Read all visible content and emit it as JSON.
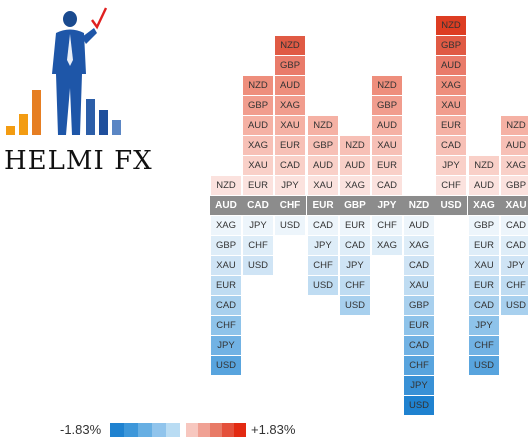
{
  "brand": {
    "name": "HELMI FX"
  },
  "logo": {
    "icon": "businessman-chart-logo"
  },
  "heatmap": {
    "columns": [
      {
        "base": "AUD",
        "up": [
          "NZD"
        ],
        "down": [
          "XAG",
          "GBP",
          "XAU",
          "EUR",
          "CAD",
          "CHF",
          "JPY",
          "USD"
        ]
      },
      {
        "base": "CAD",
        "up": [
          "EUR",
          "XAU",
          "XAG",
          "AUD",
          "GBP",
          "NZD"
        ],
        "down": [
          "JPY",
          "CHF",
          "USD"
        ]
      },
      {
        "base": "CHF",
        "up": [
          "JPY",
          "CAD",
          "EUR",
          "XAU",
          "XAG",
          "AUD",
          "GBP",
          "NZD"
        ],
        "down": [
          "USD"
        ]
      },
      {
        "base": "EUR",
        "up": [
          "XAU",
          "AUD",
          "GBP",
          "NZD"
        ],
        "down": [
          "CAD",
          "JPY",
          "CHF",
          "USD"
        ]
      },
      {
        "base": "GBP",
        "up": [
          "XAG",
          "AUD",
          "NZD"
        ],
        "down": [
          "EUR",
          "CAD",
          "JPY",
          "CHF",
          "USD"
        ]
      },
      {
        "base": "JPY",
        "up": [
          "CAD",
          "EUR",
          "XAU",
          "AUD",
          "GBP",
          "NZD"
        ],
        "down": [
          "CHF",
          "XAG"
        ]
      },
      {
        "base": "NZD",
        "up": [],
        "down": [
          "AUD",
          "XAG",
          "CAD",
          "XAU",
          "GBP",
          "EUR",
          "CAD",
          "CHF",
          "JPY",
          "USD"
        ]
      },
      {
        "base": "USD",
        "up": [
          "CHF",
          "JPY",
          "CAD",
          "EUR",
          "XAU",
          "XAG",
          "AUD",
          "GBP",
          "NZD"
        ],
        "down": []
      },
      {
        "base": "XAG",
        "up": [
          "AUD",
          "NZD"
        ],
        "down": [
          "GBP",
          "EUR",
          "XAU",
          "EUR",
          "CAD",
          "JPY",
          "CHF",
          "USD"
        ]
      },
      {
        "base": "XAU",
        "up": [
          "GBP",
          "XAG",
          "AUD",
          "NZD"
        ],
        "down": [
          "CAD",
          "CAD",
          "JPY",
          "CHF",
          "USD"
        ]
      }
    ],
    "up_colors": [
      "#fbe2de",
      "#f9d0c8",
      "#f7c0b6",
      "#f5b1a4",
      "#f19d8e",
      "#ee8e7c",
      "#e97b6a",
      "#e05a44",
      "#dd3d22",
      "#e32a12"
    ],
    "down_colors": [
      "#edf5fb",
      "#deedf8",
      "#cfe4f5",
      "#bfdcf2",
      "#a8d0ee",
      "#8ec3ea",
      "#71b2e4",
      "#58a4de",
      "#3991d6",
      "#1f82d0"
    ],
    "base_color": "#8c8c8c"
  },
  "legend": {
    "min_label": "-1.83%",
    "max_label": "+1.83%",
    "blue_swatches": [
      "#1f82d0",
      "#3d97da",
      "#67afe3",
      "#90c4ec",
      "#b9dcf3"
    ],
    "red_swatches": [
      "#f7c7bf",
      "#f0a194",
      "#e87a66",
      "#e4503b",
      "#e32a12"
    ]
  }
}
